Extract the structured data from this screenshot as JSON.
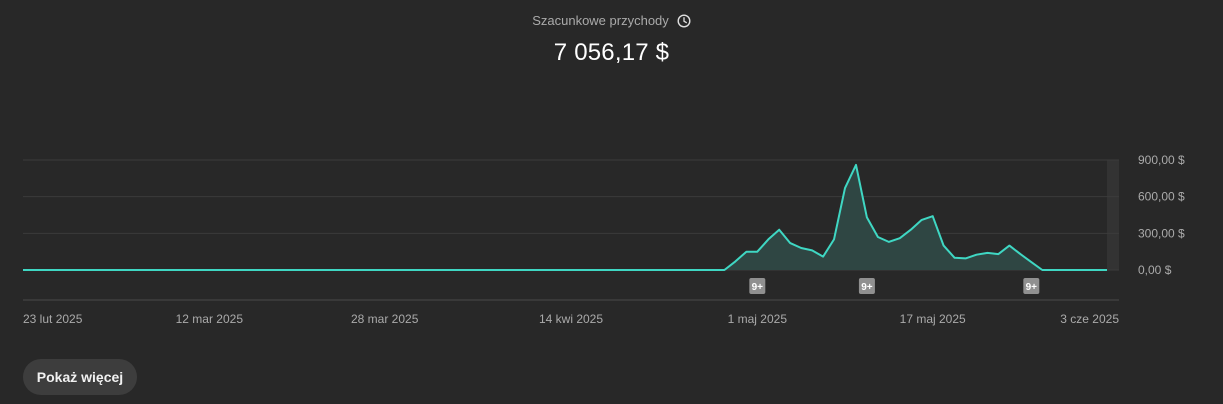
{
  "metric": {
    "label": "Szacunkowe przychody",
    "value": "7 056,17 $",
    "icon": "clock-icon"
  },
  "show_more_label": "Pokaż więcej",
  "colors": {
    "background": "#282828",
    "line": "#3fd7c3",
    "area_fill": "#2f4643",
    "grid": "#3b3b3b",
    "axis_text": "#aaaaaa",
    "badge_bg": "#909090"
  },
  "chart_data": {
    "type": "area",
    "x_start": "2025-02-23",
    "x_end": "2025-06-03",
    "ylim": [
      0,
      900
    ],
    "yticks": [
      {
        "value": 0,
        "label": "0,00 $"
      },
      {
        "value": 300,
        "label": "300,00 $"
      },
      {
        "value": 600,
        "label": "600,00 $"
      },
      {
        "value": 900,
        "label": "900,00 $"
      }
    ],
    "xticks": [
      {
        "date": "2025-02-23",
        "label": "23 lut 2025"
      },
      {
        "date": "2025-03-12",
        "label": "12 mar 2025"
      },
      {
        "date": "2025-03-28",
        "label": "28 mar 2025"
      },
      {
        "date": "2025-04-14",
        "label": "14 kwi 2025"
      },
      {
        "date": "2025-05-01",
        "label": "1 maj 2025"
      },
      {
        "date": "2025-05-17",
        "label": "17 maj 2025"
      },
      {
        "date": "2025-06-03",
        "label": "3 cze 2025"
      }
    ],
    "series": [
      {
        "points": [
          [
            "2025-02-23",
            0
          ],
          [
            "2025-04-28",
            0
          ],
          [
            "2025-04-29",
            70
          ],
          [
            "2025-04-30",
            150
          ],
          [
            "2025-05-01",
            150
          ],
          [
            "2025-05-02",
            250
          ],
          [
            "2025-05-03",
            330
          ],
          [
            "2025-05-04",
            220
          ],
          [
            "2025-05-05",
            180
          ],
          [
            "2025-05-06",
            160
          ],
          [
            "2025-05-07",
            110
          ],
          [
            "2025-05-08",
            250
          ],
          [
            "2025-05-09",
            670
          ],
          [
            "2025-05-10",
            860
          ],
          [
            "2025-05-11",
            430
          ],
          [
            "2025-05-12",
            270
          ],
          [
            "2025-05-13",
            230
          ],
          [
            "2025-05-14",
            260
          ],
          [
            "2025-05-15",
            330
          ],
          [
            "2025-05-16",
            410
          ],
          [
            "2025-05-17",
            440
          ],
          [
            "2025-05-18",
            200
          ],
          [
            "2025-05-19",
            100
          ],
          [
            "2025-05-20",
            95
          ],
          [
            "2025-05-21",
            125
          ],
          [
            "2025-05-22",
            140
          ],
          [
            "2025-05-23",
            130
          ],
          [
            "2025-05-24",
            200
          ],
          [
            "2025-05-25",
            130
          ],
          [
            "2025-05-26",
            65
          ],
          [
            "2025-05-27",
            0
          ],
          [
            "2025-06-01",
            0
          ]
        ]
      }
    ],
    "markers": [
      {
        "date": "2025-05-01",
        "label": "9+"
      },
      {
        "date": "2025-05-11",
        "label": "9+"
      },
      {
        "date": "2025-05-26",
        "label": "9+"
      }
    ],
    "grid": true
  }
}
